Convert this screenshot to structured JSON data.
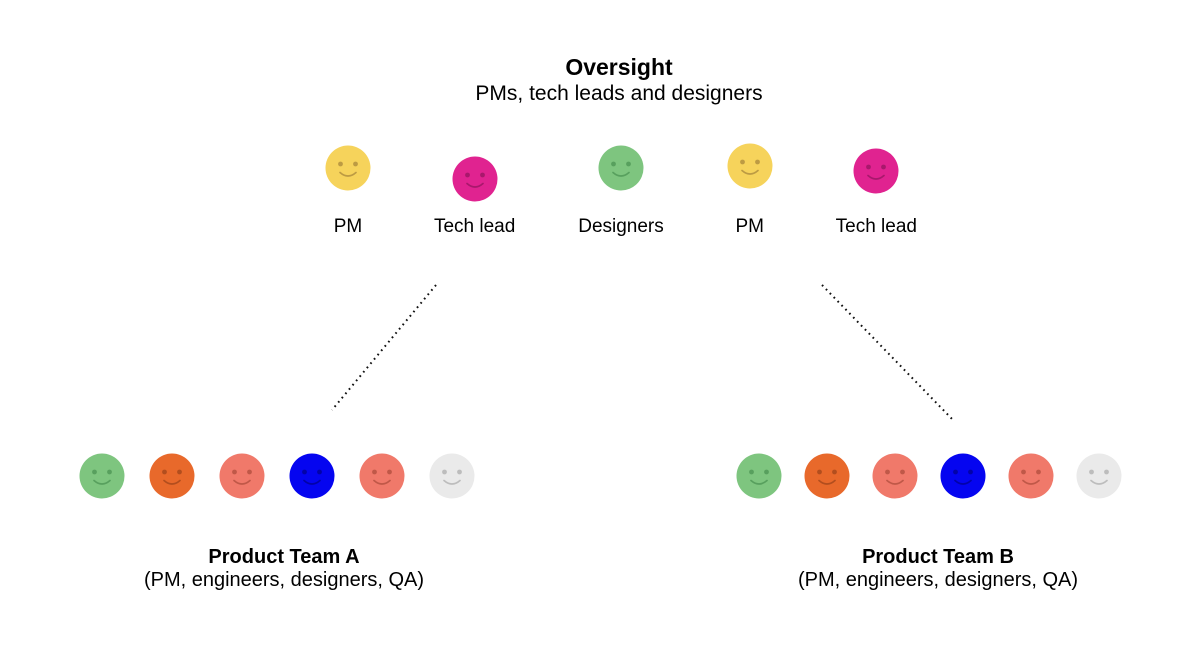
{
  "header": {
    "title": "Oversight",
    "subtitle": "PMs, tech leads and designers"
  },
  "oversight_row": {
    "members": [
      {
        "label": "PM",
        "face": "yellow"
      },
      {
        "label": "Tech lead",
        "face": "magenta"
      },
      {
        "label": "Designers",
        "face": "green"
      },
      {
        "label": "PM",
        "face": "yellow"
      },
      {
        "label": "Tech lead",
        "face": "magenta"
      }
    ]
  },
  "teams": [
    {
      "name": "Product Team A",
      "composition": "(PM, engineers, designers, QA)",
      "members": [
        {
          "face": "green"
        },
        {
          "face": "orange"
        },
        {
          "face": "salmon"
        },
        {
          "face": "blue"
        },
        {
          "face": "salmon"
        },
        {
          "face": "gray"
        }
      ]
    },
    {
      "name": "Product Team B",
      "composition": "(PM, engineers, designers, QA)",
      "members": [
        {
          "face": "green"
        },
        {
          "face": "orange"
        },
        {
          "face": "salmon"
        },
        {
          "face": "blue"
        },
        {
          "face": "salmon"
        },
        {
          "face": "gray"
        }
      ]
    }
  ],
  "face_palette": {
    "yellow": {
      "fill": "#F6D35B",
      "features": "#BD9B43"
    },
    "magenta": {
      "fill": "#E02390",
      "features": "#A8186C"
    },
    "green": {
      "fill": "#7EC57F",
      "features": "#58A05E"
    },
    "orange": {
      "fill": "#E8692B",
      "features": "#B24E1E"
    },
    "salmon": {
      "fill": "#F0796A",
      "features": "#C05848"
    },
    "blue": {
      "fill": "#0505F0",
      "features": "#0202A8"
    },
    "gray": {
      "fill": "#EAEAEA",
      "features": "#BDBDBD"
    }
  },
  "connectors": {
    "color": "#111111",
    "style": "dotted"
  }
}
